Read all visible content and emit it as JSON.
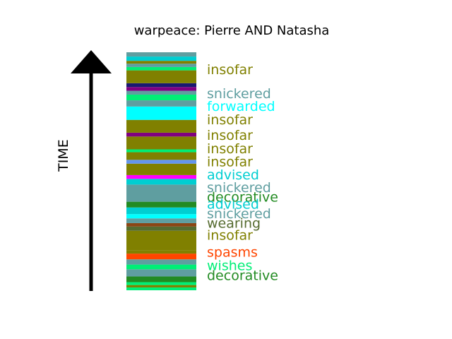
{
  "chart_data": {
    "type": "bar",
    "title": "warpeace: Pierre AND Natasha",
    "ylabel": "TIME",
    "axis_direction": "up",
    "ylim": [
      0,
      100
    ],
    "stripes": [
      {
        "y": 0.0,
        "h": 1.2,
        "color": "#00ee76"
      },
      {
        "y": 1.2,
        "h": 1.0,
        "color": "#808000"
      },
      {
        "y": 2.2,
        "h": 1.2,
        "color": "#00ee76"
      },
      {
        "y": 3.4,
        "h": 2.4,
        "color": "#228b22"
      },
      {
        "y": 5.8,
        "h": 3.0,
        "color": "#5f9ea0"
      },
      {
        "y": 8.8,
        "h": 2.0,
        "color": "#00ee76"
      },
      {
        "y": 10.8,
        "h": 2.2,
        "color": "#5f9ea0"
      },
      {
        "y": 13.0,
        "h": 2.4,
        "color": "#ff4500"
      },
      {
        "y": 15.4,
        "h": 1.4,
        "color": "#808000"
      },
      {
        "y": 16.8,
        "h": 8.2,
        "color": "#808000"
      },
      {
        "y": 25.0,
        "h": 1.8,
        "color": "#556b2f"
      },
      {
        "y": 26.8,
        "h": 1.4,
        "color": "#8b4513"
      },
      {
        "y": 28.2,
        "h": 2.0,
        "color": "#5f9ea0"
      },
      {
        "y": 30.2,
        "h": 1.8,
        "color": "#00ffff"
      },
      {
        "y": 32.0,
        "h": 2.8,
        "color": "#00ced1"
      },
      {
        "y": 34.8,
        "h": 2.4,
        "color": "#228b22"
      },
      {
        "y": 37.2,
        "h": 7.2,
        "color": "#5f9ea0"
      },
      {
        "y": 44.4,
        "h": 2.4,
        "color": "#00ced1"
      },
      {
        "y": 46.8,
        "h": 1.6,
        "color": "#ff00ff"
      },
      {
        "y": 48.4,
        "h": 4.8,
        "color": "#808000"
      },
      {
        "y": 53.2,
        "h": 1.6,
        "color": "#6495ed"
      },
      {
        "y": 54.8,
        "h": 3.2,
        "color": "#808000"
      },
      {
        "y": 58.0,
        "h": 1.2,
        "color": "#00ee76"
      },
      {
        "y": 59.2,
        "h": 5.4,
        "color": "#808000"
      },
      {
        "y": 64.6,
        "h": 1.6,
        "color": "#800080"
      },
      {
        "y": 66.2,
        "h": 5.4,
        "color": "#808000"
      },
      {
        "y": 71.6,
        "h": 5.6,
        "color": "#00ffff"
      },
      {
        "y": 77.2,
        "h": 2.6,
        "color": "#5f9ea0"
      },
      {
        "y": 79.8,
        "h": 2.4,
        "color": "#00ee76"
      },
      {
        "y": 82.2,
        "h": 1.6,
        "color": "#5f9ea0"
      },
      {
        "y": 83.8,
        "h": 1.6,
        "color": "#800080"
      },
      {
        "y": 85.4,
        "h": 1.6,
        "color": "#191970"
      },
      {
        "y": 87.0,
        "h": 5.4,
        "color": "#808000"
      },
      {
        "y": 92.4,
        "h": 1.4,
        "color": "#00ee76"
      },
      {
        "y": 93.8,
        "h": 1.4,
        "color": "#5f9ea0"
      },
      {
        "y": 95.2,
        "h": 1.2,
        "color": "#808000"
      },
      {
        "y": 96.4,
        "h": 1.8,
        "color": "#00ced1"
      },
      {
        "y": 98.2,
        "h": 1.8,
        "color": "#5f9ea0"
      }
    ],
    "labels": [
      {
        "text": "insofar",
        "y": 92.9,
        "color": "#808000"
      },
      {
        "text": "snickered",
        "y": 82.8,
        "color": "#5f9ea0"
      },
      {
        "text": "forwarded",
        "y": 77.4,
        "color": "#00ffff"
      },
      {
        "text": "insofar",
        "y": 71.8,
        "color": "#808000"
      },
      {
        "text": "insofar",
        "y": 65.3,
        "color": "#808000"
      },
      {
        "text": "insofar",
        "y": 59.7,
        "color": "#808000"
      },
      {
        "text": "insofar",
        "y": 54.2,
        "color": "#808000"
      },
      {
        "text": "advised",
        "y": 48.6,
        "color": "#00ced1"
      },
      {
        "text": "snickered",
        "y": 43.3,
        "color": "#5f9ea0"
      },
      {
        "text": "decorative",
        "y": 39.3,
        "color": "#228b22"
      },
      {
        "text": "advised",
        "y": 36.3,
        "color": "#00ced1"
      },
      {
        "text": "snickered",
        "y": 32.4,
        "color": "#5f9ea0"
      },
      {
        "text": "wearing",
        "y": 28.4,
        "color": "#556b2f"
      },
      {
        "text": "insofar",
        "y": 23.3,
        "color": "#808000"
      },
      {
        "text": "spasms",
        "y": 16.2,
        "color": "#ff4500"
      },
      {
        "text": "wishes",
        "y": 10.6,
        "color": "#00ee76"
      },
      {
        "text": "decorative",
        "y": 6.4,
        "color": "#228b22"
      }
    ]
  }
}
